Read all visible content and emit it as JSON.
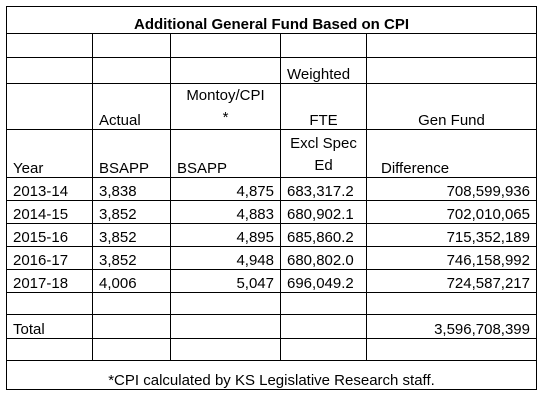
{
  "title": "Additional General Fund Based on CPI",
  "headers": {
    "weighted": "Weighted",
    "montoy_line1": "Montoy/CPI",
    "montoy_star": "*",
    "actual": "Actual",
    "fte": "FTE",
    "gen_fund": "Gen Fund",
    "excl_spec": "Excl Spec",
    "ed": "Ed",
    "year": "Year",
    "bsapp_actual": "BSAPP",
    "bsapp_montoy": "BSAPP",
    "difference": "Difference"
  },
  "rows": [
    {
      "year": "2013-14",
      "actual": "3,838",
      "montoy": "4,875",
      "fte": "683,317.2",
      "diff": "708,599,936"
    },
    {
      "year": "2014-15",
      "actual": "3,852",
      "montoy": "4,883",
      "fte": "680,902.1",
      "diff": "702,010,065"
    },
    {
      "year": "2015-16",
      "actual": "3,852",
      "montoy": "4,895",
      "fte": "685,860.2",
      "diff": "715,352,189"
    },
    {
      "year": "2016-17",
      "actual": "3,852",
      "montoy": "4,948",
      "fte": "680,802.0",
      "diff": "746,158,992"
    },
    {
      "year": "2017-18",
      "actual": "4,006",
      "montoy": "5,047",
      "fte": "696,049.2",
      "diff": "724,587,217"
    }
  ],
  "total": {
    "label": "Total",
    "value": "3,596,708,399"
  },
  "footnote": "*CPI calculated by KS Legislative Research staff."
}
